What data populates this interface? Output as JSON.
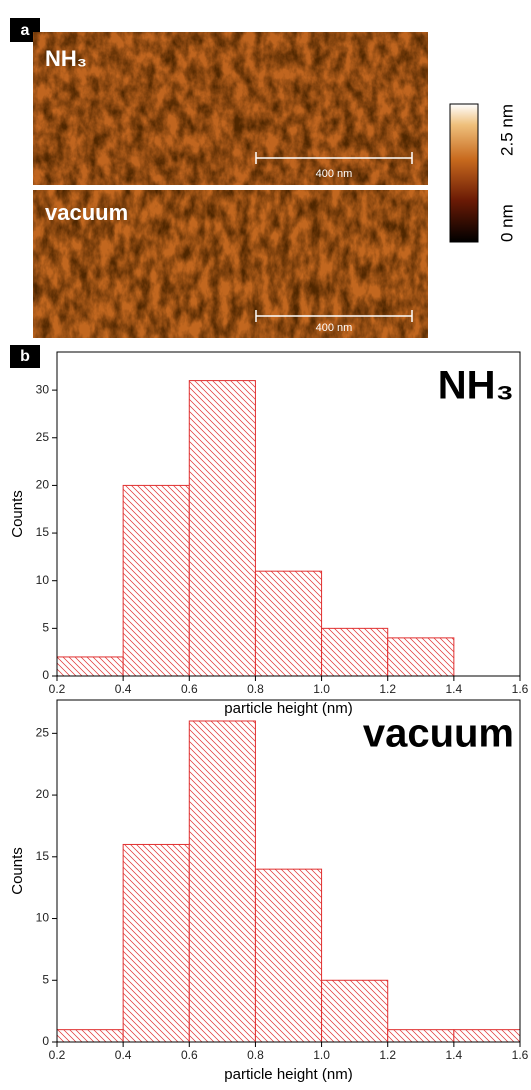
{
  "panel_a": {
    "label": "a",
    "images": [
      {
        "label": "NH₃",
        "scale_bar": "400 nm"
      },
      {
        "label": "vacuum",
        "scale_bar": "400 nm"
      }
    ],
    "colorbar": {
      "max_label": "2.5 nm",
      "min_label": "0 nm"
    }
  },
  "panel_b": {
    "label": "b"
  },
  "chart_data": [
    {
      "type": "histogram",
      "title": "NH₃",
      "x_label": "particle height (nm)",
      "y_label": "Counts",
      "bins": [
        0.2,
        0.4,
        0.6,
        0.8,
        1.0,
        1.2,
        1.4,
        1.6
      ],
      "values": [
        2,
        20,
        31,
        11,
        5,
        4,
        0
      ],
      "color": "#e03030",
      "xlim": [
        0.2,
        1.6
      ],
      "xticks": [
        0.2,
        0.4,
        0.6,
        0.8,
        {
          "value": 1.0,
          "label": "1.0"
        },
        1.2,
        1.4,
        1.6
      ],
      "ylim": [
        0,
        34
      ],
      "yticks": [
        0,
        5,
        10,
        15,
        20,
        25,
        30
      ]
    },
    {
      "type": "histogram",
      "title": "vacuum",
      "x_label": "particle height (nm)",
      "y_label": "Counts",
      "bins": [
        0.2,
        0.4,
        0.6,
        0.8,
        1.0,
        1.2,
        1.4,
        1.6
      ],
      "values": [
        1,
        16,
        26,
        14,
        5,
        1,
        1
      ],
      "color": "#e03030",
      "xlim": [
        0.2,
        1.6
      ],
      "xticks": [
        0.2,
        0.4,
        0.6,
        0.8,
        {
          "value": 1.0,
          "label": "1.0"
        },
        1.2,
        1.4,
        1.6
      ],
      "ylim": [
        0,
        27.7
      ],
      "yticks": [
        0,
        5,
        10,
        15,
        20,
        25
      ]
    }
  ]
}
